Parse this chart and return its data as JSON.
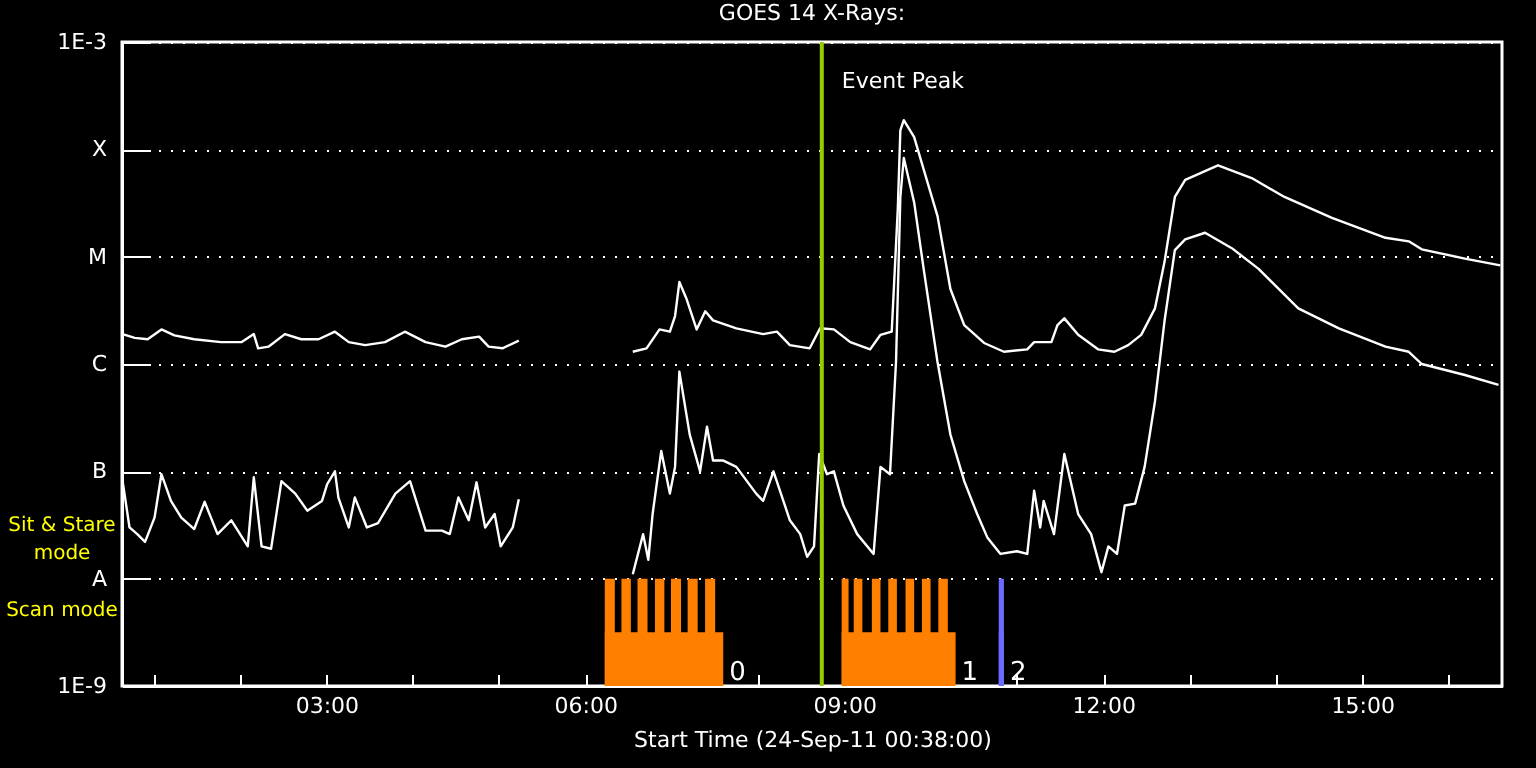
{
  "chart_data": {
    "type": "line",
    "title": "GOES 14 X-Rays:",
    "xlabel": "Start Time (24-Sep-11 00:38:00)",
    "log": "y",
    "grid": "y",
    "line_style": "solid",
    "xlim": [
      0.633,
      16.62
    ],
    "xticks": [
      {
        "value": 1,
        "label": null
      },
      {
        "value": 2,
        "label": null
      },
      {
        "value": 3,
        "label": "03:00"
      },
      {
        "value": 4,
        "label": null
      },
      {
        "value": 5,
        "label": null
      },
      {
        "value": 6,
        "label": "06:00"
      },
      {
        "value": 7,
        "label": null
      },
      {
        "value": 8,
        "label": null
      },
      {
        "value": 9,
        "label": "09:00"
      },
      {
        "value": 10,
        "label": null
      },
      {
        "value": 11,
        "label": null
      },
      {
        "value": 12,
        "label": "12:00"
      },
      {
        "value": 13,
        "label": null
      },
      {
        "value": 14,
        "label": null
      },
      {
        "value": 15,
        "label": "15:00"
      },
      {
        "value": 16,
        "label": null
      }
    ],
    "ylim": [
      1e-09,
      0.001
    ],
    "yticks": [
      {
        "value": 1e-09,
        "label": "1E-9"
      },
      {
        "value": 1e-08,
        "label": "A"
      },
      {
        "value": 1e-07,
        "label": "B"
      },
      {
        "value": 1e-06,
        "label": "C"
      },
      {
        "value": 1e-05,
        "label": "M"
      },
      {
        "value": 0.0001,
        "label": "X"
      },
      {
        "value": 0.001,
        "label": "1E-3"
      }
    ],
    "series": [
      {
        "color": "#ffffff",
        "x": [
          0.64,
          0.78,
          0.93,
          1.09,
          1.24,
          1.47,
          1.78,
          2.02,
          2.16,
          2.21,
          2.33,
          2.52,
          2.71,
          2.91,
          3.1,
          3.26,
          3.45,
          3.68,
          3.91,
          4.15,
          4.38,
          4.57,
          4.77,
          4.88,
          5.04,
          5.23,
          5.9,
          6.55,
          6.71,
          6.86,
          6.98,
          7.04,
          7.09,
          7.17,
          7.29,
          7.39,
          7.48,
          7.75,
          8.06,
          8.22,
          8.37,
          8.6,
          8.72,
          8.88,
          9.07,
          9.3,
          9.42,
          9.55,
          9.62,
          9.65,
          9.69,
          9.81,
          9.92,
          10.08,
          10.23,
          10.39,
          10.62,
          10.85,
          11.12,
          11.2,
          11.4,
          11.47,
          11.55,
          11.71,
          11.94,
          12.13,
          12.29,
          12.44,
          12.6,
          12.71,
          12.83,
          12.95,
          13.33,
          13.72,
          14.1,
          14.65,
          15.27,
          15.54,
          15.69,
          16.19,
          16.6
        ],
        "values": [
          1.9e-06,
          1.75e-06,
          1.7e-06,
          2.1e-06,
          1.85e-06,
          1.7e-06,
          1.6e-06,
          1.6e-06,
          1.9e-06,
          1.4e-06,
          1.45e-06,
          1.9e-06,
          1.7e-06,
          1.7e-06,
          2e-06,
          1.6e-06,
          1.5e-06,
          1.6e-06,
          2e-06,
          1.6e-06,
          1.45e-06,
          1.7e-06,
          1.8e-06,
          1.45e-06,
          1.4e-06,
          1.65e-06,
          null,
          1.3e-06,
          1.4e-06,
          2.1e-06,
          2e-06,
          2.8e-06,
          5.8e-06,
          4.1e-06,
          2.1e-06,
          3.1e-06,
          2.55e-06,
          2.15e-06,
          1.9e-06,
          2e-06,
          1.5e-06,
          1.4e-06,
          2.15e-06,
          2.1e-06,
          1.6e-06,
          1.37e-06,
          1.87e-06,
          2e-06,
          2.75e-05,
          0.00015,
          0.000187,
          0.00013,
          6.5e-05,
          2.4e-05,
          5e-06,
          2.3e-06,
          1.57e-06,
          1.3e-06,
          1.37e-06,
          1.6e-06,
          1.6e-06,
          2.3e-06,
          2.66e-06,
          1.87e-06,
          1.37e-06,
          1.3e-06,
          1.5e-06,
          1.87e-06,
          3.3e-06,
          8.9e-06,
          3.6e-05,
          5.2e-05,
          7.1e-05,
          5.4e-05,
          3.6e-05,
          2.3e-05,
          1.5e-05,
          1.39e-05,
          1.17e-05,
          9.6e-06,
          8.3e-06
        ]
      },
      {
        "color": "#ffffff",
        "x": [
          0.64,
          0.72,
          0.81,
          0.9,
          1.01,
          1.09,
          1.2,
          1.32,
          1.47,
          1.59,
          1.74,
          1.9,
          2.09,
          2.16,
          2.25,
          2.36,
          2.48,
          2.64,
          2.78,
          2.95,
          3.01,
          3.1,
          3.14,
          3.26,
          3.33,
          3.47,
          3.6,
          3.8,
          3.97,
          4.15,
          4.34,
          4.43,
          4.53,
          4.65,
          4.74,
          4.84,
          4.95,
          5.02,
          5.16,
          5.23,
          5.9,
          6.55,
          6.67,
          6.73,
          6.78,
          6.88,
          6.98,
          7.04,
          7.09,
          7.21,
          7.33,
          7.41,
          7.48,
          7.6,
          7.75,
          7.98,
          8.06,
          8.18,
          8.37,
          8.49,
          8.57,
          8.65,
          8.71,
          8.8,
          8.88,
          8.99,
          9.15,
          9.34,
          9.42,
          9.53,
          9.6,
          9.65,
          9.69,
          9.81,
          9.92,
          10.08,
          10.23,
          10.39,
          10.54,
          10.66,
          10.81,
          11.0,
          11.12,
          11.2,
          11.27,
          11.31,
          11.43,
          11.55,
          11.71,
          11.86,
          11.98,
          12.06,
          12.16,
          12.25,
          12.37,
          12.48,
          12.6,
          12.71,
          12.83,
          12.95,
          13.18,
          13.49,
          13.8,
          14.26,
          14.73,
          15.27,
          15.54,
          15.69,
          16.19,
          16.58
        ],
        "values": [
          8.1e-08,
          3e-08,
          2.6e-08,
          2.2e-08,
          3.7e-08,
          9.4e-08,
          5.3e-08,
          3.7e-08,
          2.9e-08,
          5.2e-08,
          2.6e-08,
          3.5e-08,
          2e-08,
          8.8e-08,
          2e-08,
          1.9e-08,
          8.1e-08,
          6.2e-08,
          4.3e-08,
          5.3e-08,
          7.6e-08,
          1e-07,
          5.7e-08,
          3e-08,
          5.7e-08,
          3e-08,
          3.3e-08,
          6.2e-08,
          8.1e-08,
          2.8e-08,
          2.8e-08,
          2.6e-08,
          5.7e-08,
          3.5e-08,
          7.9e-08,
          3e-08,
          4e-08,
          2e-08,
          3e-08,
          5.5e-08,
          null,
          1.1e-08,
          2.6e-08,
          1.5e-08,
          4e-08,
          1.55e-07,
          6.2e-08,
          1.1e-07,
          8.5e-07,
          2.2e-07,
          1e-07,
          2.6e-07,
          1.26e-07,
          1.26e-07,
          1.1e-07,
          6.2e-08,
          5.3e-08,
          1e-07,
          3.5e-08,
          2.6e-08,
          1.6e-08,
          2e-08,
          1.45e-07,
          9.4e-08,
          1e-07,
          4.8e-08,
          2.6e-08,
          1.7e-08,
          1.1e-07,
          9.4e-08,
          1.05e-06,
          3.6e-05,
          8.3e-05,
          3.2e-05,
          7.7e-06,
          1.05e-06,
          2.2e-07,
          8.1e-08,
          4e-08,
          2.4e-08,
          1.7e-08,
          1.8e-08,
          1.7e-08,
          6.6e-08,
          3e-08,
          5.3e-08,
          2.6e-08,
          1.45e-07,
          4e-08,
          2.6e-08,
          1.15e-08,
          2e-08,
          1.7e-08,
          4.8e-08,
          5e-08,
          1.1e-07,
          4.5e-07,
          2.5e-06,
          1.15e-05,
          1.45e-05,
          1.67e-05,
          1.2e-05,
          7.7e-06,
          3.3e-06,
          2.15e-06,
          1.45e-06,
          1.3e-06,
          1e-06,
          7.9e-07,
          6.4e-07
        ]
      }
    ],
    "ref_lines": [
      {
        "axis": "x",
        "value": 8.74,
        "label": "Event Peak",
        "color": "#99cc00"
      }
    ],
    "bands": [
      {
        "axis": "x",
        "from": 6.226,
        "to": 7.598,
        "label": "0",
        "color": "#ff8000"
      },
      {
        "axis": "x",
        "from": 6.226,
        "to": 6.342,
        "color": "#ff8000"
      },
      {
        "axis": "x",
        "from": 6.419,
        "to": 6.528,
        "color": "#ff8000"
      },
      {
        "axis": "x",
        "from": 6.605,
        "to": 6.721,
        "color": "#ff8000"
      },
      {
        "axis": "x",
        "from": 6.807,
        "to": 6.916,
        "color": "#ff8000"
      },
      {
        "axis": "x",
        "from": 6.993,
        "to": 7.109,
        "color": "#ff8000"
      },
      {
        "axis": "x",
        "from": 7.186,
        "to": 7.302,
        "color": "#ff8000"
      },
      {
        "axis": "x",
        "from": 7.388,
        "to": 7.505,
        "color": "#ff8000"
      },
      {
        "axis": "x",
        "from": 8.97,
        "to": 10.29,
        "label": "1",
        "color": "#ff8000"
      },
      {
        "axis": "x",
        "from": 8.97,
        "to": 9.05,
        "color": "#ff8000"
      },
      {
        "axis": "x",
        "from": 9.11,
        "to": 9.21,
        "color": "#ff8000"
      },
      {
        "axis": "x",
        "from": 9.32,
        "to": 9.42,
        "color": "#ff8000"
      },
      {
        "axis": "x",
        "from": 9.51,
        "to": 9.61,
        "color": "#ff8000"
      },
      {
        "axis": "x",
        "from": 9.71,
        "to": 9.81,
        "color": "#ff8000"
      },
      {
        "axis": "x",
        "from": 9.9,
        "to": 10.0,
        "color": "#ff8000"
      },
      {
        "axis": "x",
        "from": 10.09,
        "to": 10.2,
        "color": "#ff8000"
      },
      {
        "axis": "x",
        "from": 10.79,
        "to": 10.85,
        "label": "2",
        "color": "#6b6bff"
      },
      {
        "axis": "x",
        "from": 10.79,
        "to": 10.85,
        "color": "#6b6bff"
      }
    ],
    "annotations": [
      "Sit & Stare mode",
      "Scan mode"
    ]
  }
}
